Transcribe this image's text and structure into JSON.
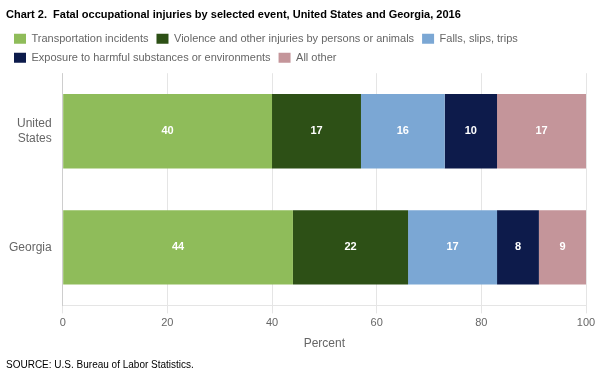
{
  "chart_data": {
    "type": "bar",
    "orientation": "horizontal",
    "stacked": true,
    "title": "Chart 2.  Fatal occupational injuries by selected event, United States and Georgia, 2016",
    "annotations": [
      "SOURCE: U.S. Bureau of Labor Statistics."
    ],
    "categories": [
      "United\nStates",
      "Georgia"
    ],
    "series": [
      {
        "name": "Transportation incidents",
        "color": "#8FBC5A",
        "values": [
          40,
          44
        ]
      },
      {
        "name": "Violence and other injuries by persons or animals",
        "color": "#2D5016",
        "values": [
          17,
          22
        ]
      },
      {
        "name": "Falls, slips, trips",
        "color": "#7BA7D4",
        "values": [
          16,
          17
        ]
      },
      {
        "name": "Exposure to harmful substances or environments",
        "color": "#0D1B4B",
        "values": [
          10,
          8
        ]
      },
      {
        "name": "All other",
        "color": "#C4959A",
        "values": [
          17,
          9
        ]
      }
    ],
    "xlabel": "Percent",
    "xlim": [
      0,
      100
    ],
    "xticks": [
      0,
      20,
      40,
      60,
      80,
      100
    ],
    "grid": true,
    "legend": "top",
    "data_labels": true
  }
}
